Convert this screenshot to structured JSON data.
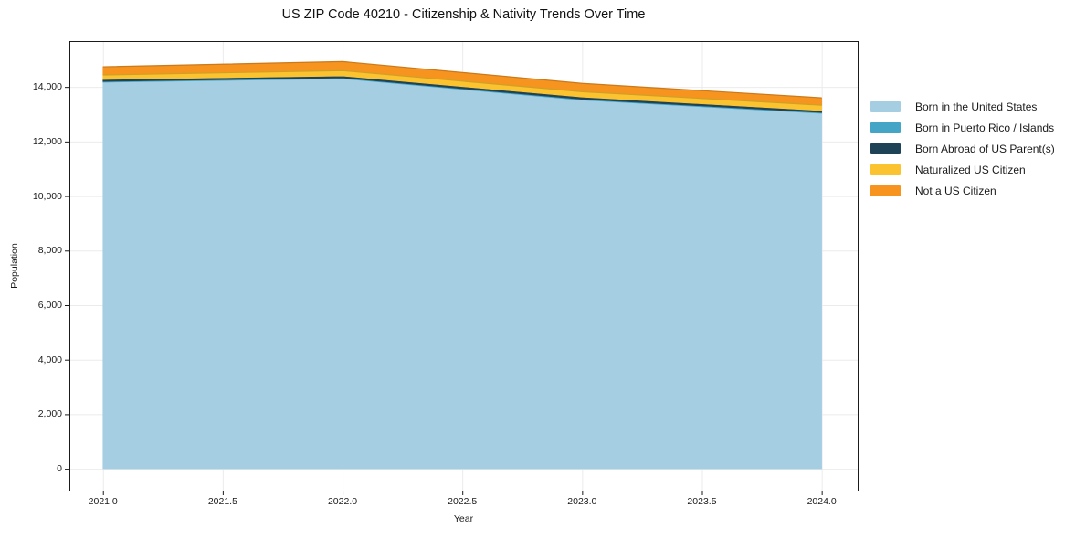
{
  "chart_data": {
    "type": "area",
    "stacked": true,
    "title": "US ZIP Code 40210 - Citizenship & Nativity Trends Over Time",
    "xlabel": "Year",
    "ylabel": "Population",
    "x": [
      2021,
      2022,
      2023,
      2024
    ],
    "series": [
      {
        "name": "Born in the United States",
        "color": "#A6CEE3",
        "values": [
          14170,
          14300,
          13515,
          13030
        ]
      },
      {
        "name": "Born in Puerto Rico / Islands",
        "color": "#45A5C6",
        "values": [
          30,
          30,
          30,
          30
        ]
      },
      {
        "name": "Born Abroad of US Parent(s)",
        "color": "#1F4356",
        "values": [
          70,
          70,
          80,
          70
        ]
      },
      {
        "name": "Naturalized US Citizen",
        "color": "#FCC330",
        "values": [
          170,
          200,
          200,
          200
        ]
      },
      {
        "name": "Not a US Citizen",
        "color": "#F7941F",
        "values": [
          300,
          330,
          305,
          270
        ]
      }
    ],
    "x_tick_values": [
      2021.0,
      2021.5,
      2022.0,
      2022.5,
      2023.0,
      2023.5,
      2024.0
    ],
    "x_tick_labels": [
      "2021.0",
      "2021.5",
      "2022.0",
      "2022.5",
      "2023.0",
      "2023.5",
      "2024.0"
    ],
    "y_tick_values": [
      0,
      2000,
      4000,
      6000,
      8000,
      10000,
      12000,
      14000
    ],
    "y_tick_labels": [
      "0",
      "2,000",
      "4,000",
      "6,000",
      "8,000",
      "10,000",
      "12,000",
      "14,000"
    ],
    "xlim": [
      2020.86,
      2024.15
    ],
    "ylim": [
      -800,
      15680
    ],
    "grid": true,
    "legend_position": "right-outside-top",
    "style": {
      "background": "#ffffff",
      "grid_color": "#ebebeb",
      "spine_color": "#1a1a1a",
      "tick_color": "#1a1a1a",
      "text_color": "#1a1a1a"
    }
  }
}
